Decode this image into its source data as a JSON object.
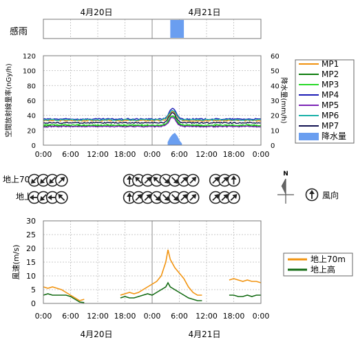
{
  "dates": {
    "day1": "4月20日",
    "day2": "4月21日"
  },
  "time_ticks": [
    "0:00",
    "6:00",
    "12:00",
    "18:00",
    "0:00",
    "6:00",
    "12:00",
    "18:00",
    "0:00"
  ],
  "colors": {
    "MP1": "#f0900c",
    "MP2": "#0a7a0a",
    "MP3": "#26d926",
    "MP4": "#1a1ab5",
    "MP5": "#7a22b5",
    "MP6": "#18b0a8",
    "MP7": "#101050",
    "rain": "#6a9ef0",
    "wind70": "#f29410",
    "windlow": "#136b13",
    "grid": "#c8c8c8"
  },
  "rain_panel": {
    "label": "感雨"
  },
  "dose_chart": {
    "ylabel_left": "空間放射線量率(nGy/h)",
    "ylabel_right": "降水量(mm/h)",
    "left_ticks": [
      "0",
      "20",
      "40",
      "60",
      "80",
      "100",
      "120"
    ],
    "right_ticks": [
      "0",
      "10",
      "20",
      "30",
      "40",
      "50",
      "60"
    ],
    "legend": [
      "MP1",
      "MP2",
      "MP3",
      "MP4",
      "MP5",
      "MP6",
      "MP7",
      "降水量"
    ]
  },
  "wind_dir": {
    "row_labels": [
      "地上70m",
      "地上"
    ],
    "north_label": "N",
    "legend_label": "風向",
    "groups": [
      {
        "start_hour": -2,
        "row1": [
          "SW",
          "SW",
          "SW",
          "NE"
        ],
        "row2": [
          "W",
          "SW",
          "W",
          "NW"
        ]
      },
      {
        "start_hour": 19,
        "row1": [
          "N",
          "NW",
          "NE",
          "NW",
          "SE",
          "SE",
          "NE",
          "NE"
        ],
        "row2": [
          "N",
          "NE",
          "NE",
          "SE",
          "SE",
          "SE",
          "NE",
          "NE"
        ]
      },
      {
        "start_hour": 38,
        "row1": [
          "NE",
          "NE",
          "N"
        ],
        "row2": [
          "NE",
          "NE",
          "NE"
        ]
      }
    ]
  },
  "wind_chart": {
    "ylabel": "風速(m/s)",
    "yticks": [
      "0",
      "5",
      "10",
      "15",
      "20",
      "25",
      "30"
    ],
    "legend": [
      "地上70m",
      "地上高"
    ]
  },
  "chart_data": [
    {
      "type": "bar",
      "title": "感雨",
      "bars": [
        {
          "start_hour": 28,
          "end_hour": 31
        }
      ]
    },
    {
      "type": "line",
      "xlabel": "",
      "ylabel": "空間放射線量率(nGy/h)",
      "ylim": [
        0,
        120
      ],
      "x_hours": [
        0,
        24,
        48
      ],
      "series": [
        {
          "name": "MP1",
          "base": 33,
          "peak": 45
        },
        {
          "name": "MP2",
          "base": 26,
          "peak": 39
        },
        {
          "name": "MP3",
          "base": 27,
          "peak": 40
        },
        {
          "name": "MP4",
          "base": 35,
          "peak": 49
        },
        {
          "name": "MP5",
          "base": 25,
          "peak": 37
        },
        {
          "name": "MP6",
          "base": 34,
          "peak": 47
        },
        {
          "name": "MP7",
          "base": 30,
          "peak": 43
        }
      ],
      "peak_center_hour": 28.5,
      "rain": {
        "name": "降水量",
        "ylabel": "降水量(mm/h)",
        "ylim": [
          0,
          60
        ],
        "x_hours": [
          27.5,
          28,
          28.5,
          29,
          29.5,
          30,
          30.5
        ],
        "values": [
          2,
          5,
          7,
          8,
          6,
          3,
          1
        ]
      }
    },
    {
      "type": "line",
      "xlabel": "",
      "ylabel": "風速(m/s)",
      "ylim": [
        0,
        30
      ],
      "series": [
        {
          "name": "地上70m",
          "segments": [
            {
              "x": [
                0,
                1,
                2,
                3,
                4,
                5,
                6,
                7,
                8,
                9
              ],
              "y": [
                6,
                5.5,
                6,
                5.5,
                5,
                4,
                3,
                2,
                1,
                1.5
              ]
            },
            {
              "x": [
                17,
                18,
                19,
                20,
                21,
                22,
                23,
                24,
                25,
                26,
                27,
                27.5,
                28,
                29,
                30,
                31,
                32,
                33,
                34,
                35
              ],
              "y": [
                3,
                3.5,
                4,
                3.5,
                4,
                5,
                6,
                7,
                8,
                10,
                15,
                19.5,
                16,
                13,
                11,
                9,
                6,
                4,
                3,
                3
              ]
            },
            {
              "x": [
                41,
                42,
                43,
                44,
                45,
                46,
                47,
                48
              ],
              "y": [
                8.5,
                9,
                8.5,
                8,
                8.5,
                8,
                8,
                7.5
              ]
            }
          ]
        },
        {
          "name": "地上高",
          "segments": [
            {
              "x": [
                0,
                1,
                2,
                3,
                4,
                5,
                6,
                7,
                8,
                9
              ],
              "y": [
                3,
                3.5,
                3,
                3,
                3,
                3,
                2.5,
                1.5,
                0.5,
                0.3
              ]
            },
            {
              "x": [
                17,
                18,
                19,
                20,
                21,
                22,
                23,
                24,
                25,
                26,
                27,
                27.5,
                28,
                29,
                30,
                31,
                32,
                33,
                34,
                35
              ],
              "y": [
                2,
                2.5,
                2,
                2,
                2.5,
                3,
                3.5,
                3,
                4,
                5,
                6,
                7.5,
                6,
                5,
                4,
                3,
                2,
                1.5,
                1,
                1
              ]
            },
            {
              "x": [
                41,
                42,
                43,
                44,
                45,
                46,
                47,
                48
              ],
              "y": [
                3,
                3,
                2.5,
                2.5,
                3,
                2.5,
                3,
                3
              ]
            }
          ]
        }
      ]
    }
  ]
}
